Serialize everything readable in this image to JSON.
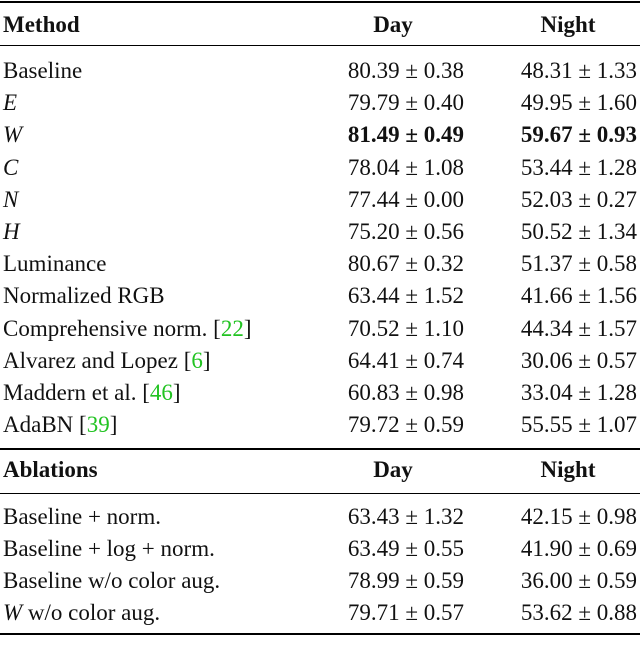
{
  "table": {
    "sections": [
      {
        "header": [
          "Method",
          "Day",
          "Night"
        ],
        "rows": [
          {
            "method": [
              {
                "text": "Baseline"
              }
            ],
            "day": "80.39 ± 0.38",
            "night": "48.31 ± 1.33"
          },
          {
            "method": [
              {
                "text": "E",
                "italic": true
              }
            ],
            "day": "79.79 ± 0.40",
            "night": "49.95 ± 1.60"
          },
          {
            "method": [
              {
                "text": "W",
                "italic": true
              }
            ],
            "day": "81.49 ± 0.49",
            "night": "59.67 ± 0.93",
            "bold": true
          },
          {
            "method": [
              {
                "text": "C",
                "italic": true
              }
            ],
            "day": "78.04 ± 1.08",
            "night": "53.44 ± 1.28"
          },
          {
            "method": [
              {
                "text": "N",
                "italic": true
              }
            ],
            "day": "77.44 ± 0.00",
            "night": "52.03 ± 0.27"
          },
          {
            "method": [
              {
                "text": "H",
                "italic": true
              }
            ],
            "day": "75.20 ± 0.56",
            "night": "50.52 ± 1.34"
          },
          {
            "method": [
              {
                "text": "Luminance"
              }
            ],
            "day": "80.67 ± 0.32",
            "night": "51.37 ± 0.58"
          },
          {
            "method": [
              {
                "text": "Normalized RGB"
              }
            ],
            "day": "63.44 ± 1.52",
            "night": "41.66 ± 1.56"
          },
          {
            "method": [
              {
                "text": "Comprehensive norm. ["
              },
              {
                "text": "22",
                "link": true
              },
              {
                "text": "]"
              }
            ],
            "day": "70.52 ± 1.10",
            "night": "44.34 ± 1.57"
          },
          {
            "method": [
              {
                "text": "Alvarez and Lopez ["
              },
              {
                "text": "6",
                "link": true
              },
              {
                "text": "]"
              }
            ],
            "day": "64.41 ± 0.74",
            "night": "30.06 ± 0.57"
          },
          {
            "method": [
              {
                "text": "Maddern et al. ["
              },
              {
                "text": "46",
                "link": true
              },
              {
                "text": "]"
              }
            ],
            "day": "60.83 ± 0.98",
            "night": "33.04 ± 1.28"
          },
          {
            "method": [
              {
                "text": "AdaBN ["
              },
              {
                "text": "39",
                "link": true
              },
              {
                "text": "]"
              }
            ],
            "day": "79.72 ± 0.59",
            "night": "55.55 ± 1.07"
          }
        ]
      },
      {
        "header": [
          "Ablations",
          "Day",
          "Night"
        ],
        "rows": [
          {
            "method": [
              {
                "text": "Baseline + norm."
              }
            ],
            "day": "63.43 ± 1.32",
            "night": "42.15 ± 0.98"
          },
          {
            "method": [
              {
                "text": "Baseline + log + norm."
              }
            ],
            "day": "63.49 ± 0.55",
            "night": "41.90 ± 0.69"
          },
          {
            "method": [
              {
                "text": "Baseline w/o color aug."
              }
            ],
            "day": "78.99 ± 0.59",
            "night": "36.00 ± 0.59"
          },
          {
            "method": [
              {
                "text": "W",
                "italic": true
              },
              {
                "text": " w/o color aug."
              }
            ],
            "day": "79.71 ± 0.57",
            "night": "53.62 ± 0.88"
          }
        ]
      }
    ]
  }
}
